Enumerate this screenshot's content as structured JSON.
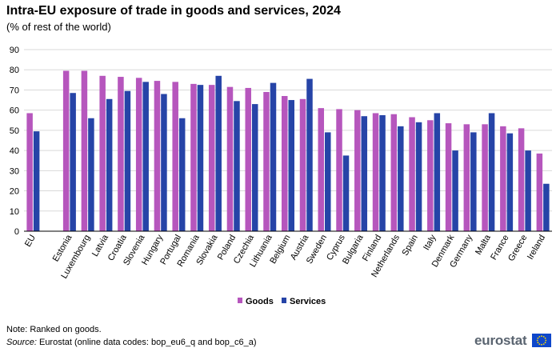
{
  "title": "Intra-EU exposure of trade in goods and services, 2024",
  "subtitle": "(% of rest of the world)",
  "note": "Note: Ranked on goods.",
  "source_label": "Source:",
  "source_text": " Eurostat (online data codes: bop_eu6_q and bop_c6_a)",
  "logo_text": "eurostat",
  "colors": {
    "goods": "#b656bd",
    "services": "#2644a7",
    "grid": "#d9d9d9",
    "axis": "#000000"
  },
  "chart_data": {
    "type": "bar",
    "title": "Intra-EU exposure of trade in goods and services, 2024",
    "subtitle": "(% of rest of the world)",
    "xlabel": "",
    "ylabel": "",
    "ylim": [
      0,
      90
    ],
    "yticks": [
      0,
      10,
      20,
      30,
      40,
      50,
      60,
      70,
      80,
      90
    ],
    "grid": true,
    "legend_position": "bottom-center",
    "categories": [
      "EU",
      "",
      "Estonia",
      "Luxembourg",
      "Latvia",
      "Croatia",
      "Slovenia",
      "Hungary",
      "Portugal",
      "Romania",
      "Slovakia",
      "Poland",
      "Czechia",
      "Lithuania",
      "Belgium",
      "Austria",
      "Sweden",
      "Cyprus",
      "Bulgaria",
      "Finland",
      "Netherlands",
      "Spain",
      "Italy",
      "Denmark",
      "Germany",
      "Malta",
      "France",
      "Greece",
      "Ireland"
    ],
    "series": [
      {
        "name": "Goods",
        "values": [
          58.5,
          null,
          79.5,
          79.5,
          77,
          76.5,
          76,
          74.5,
          74,
          73,
          72.5,
          71.5,
          71,
          69,
          67,
          65.5,
          61,
          60.5,
          60,
          58.5,
          58,
          56.5,
          55,
          53.5,
          53,
          53,
          52,
          51,
          38.5
        ]
      },
      {
        "name": "Services",
        "values": [
          49.5,
          null,
          68.5,
          56,
          65.5,
          69.5,
          74,
          68,
          56,
          72.5,
          77,
          64.5,
          63,
          73.5,
          65,
          75.5,
          49,
          37.5,
          57,
          57.5,
          52,
          54,
          58.5,
          40,
          49,
          58.5,
          48.5,
          40,
          23.5
        ]
      }
    ]
  }
}
